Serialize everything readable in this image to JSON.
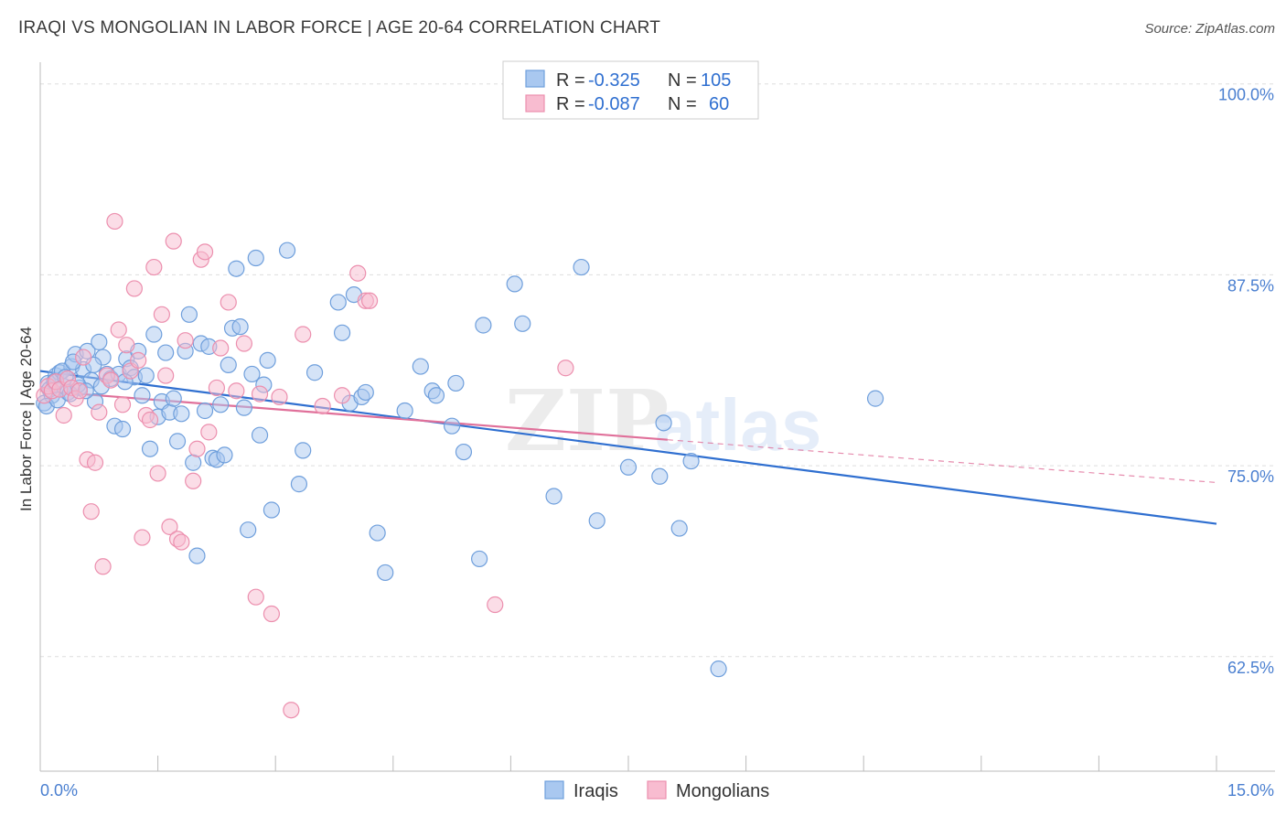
{
  "title": "IRAQI VS MONGOLIAN IN LABOR FORCE | AGE 20-64 CORRELATION CHART",
  "source": "Source: ZipAtlas.com",
  "watermark": {
    "zip": "ZIP",
    "atlas": "atlas"
  },
  "colors": {
    "iraqis_fill": "#a9c8f0",
    "iraqis_stroke": "#6f9fdc",
    "iraqis_line": "#2f6fd0",
    "mongolians_fill": "#f8bcd0",
    "mongolians_stroke": "#ec8fae",
    "mongolians_line": "#e0709a",
    "tick_text": "#4a7fd0",
    "value_text": "#2f6fd0"
  },
  "stats": [
    {
      "r_label": "R =",
      "r_value": "-0.325",
      "n_label": "N =",
      "n_value": "105"
    },
    {
      "r_label": "R =",
      "r_value": "-0.087",
      "n_label": "N =",
      "n_value": "60"
    }
  ],
  "chart_data": {
    "type": "scatter",
    "xlabel": "",
    "ylabel": "In Labor Force | Age 20-64",
    "xlim": [
      0,
      15
    ],
    "ylim": [
      55,
      101
    ],
    "x_tick_labels": [
      "0.0%",
      "15.0%"
    ],
    "y_ticks": [
      62.5,
      75.0,
      87.5,
      100.0
    ],
    "y_tick_labels": [
      "62.5%",
      "75.0%",
      "87.5%",
      "100.0%"
    ],
    "grid": true,
    "legend_position": "bottom-center",
    "series": [
      {
        "name": "Iraqis",
        "trend": {
          "x": [
            0,
            15
          ],
          "y": [
            81.2,
            71.2
          ],
          "dashed_to": null
        },
        "points": [
          [
            0.05,
            79.1
          ],
          [
            0.1,
            80.4
          ],
          [
            0.15,
            79.6
          ],
          [
            0.2,
            80.9
          ],
          [
            0.25,
            81.1
          ],
          [
            0.3,
            80.2
          ],
          [
            0.35,
            79.8
          ],
          [
            0.4,
            81.5
          ],
          [
            0.45,
            82.3
          ],
          [
            0.5,
            80.1
          ],
          [
            0.55,
            81.3
          ],
          [
            0.6,
            82.5
          ],
          [
            0.65,
            80.6
          ],
          [
            0.7,
            79.2
          ],
          [
            0.75,
            83.1
          ],
          [
            0.8,
            82.1
          ],
          [
            0.85,
            81.0
          ],
          [
            0.9,
            80.7
          ],
          [
            0.95,
            77.6
          ],
          [
            1.0,
            81.0
          ],
          [
            1.05,
            77.4
          ],
          [
            1.1,
            82.0
          ],
          [
            1.15,
            81.4
          ],
          [
            1.2,
            80.8
          ],
          [
            1.25,
            82.5
          ],
          [
            1.3,
            79.6
          ],
          [
            1.4,
            76.1
          ],
          [
            1.45,
            83.6
          ],
          [
            1.5,
            78.2
          ],
          [
            1.55,
            79.2
          ],
          [
            1.6,
            82.4
          ],
          [
            1.65,
            78.5
          ],
          [
            1.7,
            79.4
          ],
          [
            1.75,
            76.6
          ],
          [
            1.8,
            78.4
          ],
          [
            1.85,
            82.5
          ],
          [
            1.9,
            84.9
          ],
          [
            1.95,
            75.2
          ],
          [
            2.0,
            69.1
          ],
          [
            2.05,
            83.0
          ],
          [
            2.1,
            78.6
          ],
          [
            2.15,
            82.8
          ],
          [
            2.2,
            75.5
          ],
          [
            2.25,
            75.4
          ],
          [
            2.3,
            79.0
          ],
          [
            2.35,
            75.7
          ],
          [
            2.4,
            81.6
          ],
          [
            2.45,
            84.0
          ],
          [
            2.5,
            87.9
          ],
          [
            2.55,
            84.1
          ],
          [
            2.6,
            78.8
          ],
          [
            2.65,
            70.8
          ],
          [
            2.7,
            81.0
          ],
          [
            2.75,
            88.6
          ],
          [
            2.8,
            77.0
          ],
          [
            2.85,
            80.3
          ],
          [
            2.9,
            81.9
          ],
          [
            2.95,
            72.1
          ],
          [
            3.15,
            89.1
          ],
          [
            3.3,
            73.8
          ],
          [
            3.35,
            76.0
          ],
          [
            3.5,
            81.1
          ],
          [
            3.8,
            85.7
          ],
          [
            3.85,
            83.7
          ],
          [
            3.95,
            79.1
          ],
          [
            4.0,
            86.2
          ],
          [
            4.1,
            79.5
          ],
          [
            4.15,
            79.8
          ],
          [
            4.3,
            70.6
          ],
          [
            4.4,
            68.0
          ],
          [
            4.65,
            78.6
          ],
          [
            4.85,
            81.5
          ],
          [
            5.0,
            79.9
          ],
          [
            5.05,
            79.6
          ],
          [
            5.25,
            77.6
          ],
          [
            5.3,
            80.4
          ],
          [
            5.4,
            75.9
          ],
          [
            5.6,
            68.9
          ],
          [
            5.65,
            84.2
          ],
          [
            6.05,
            86.9
          ],
          [
            6.15,
            84.3
          ],
          [
            6.55,
            73.0
          ],
          [
            6.9,
            88.0
          ],
          [
            7.1,
            71.4
          ],
          [
            7.5,
            74.9
          ],
          [
            7.9,
            74.3
          ],
          [
            7.95,
            77.8
          ],
          [
            8.15,
            70.9
          ],
          [
            8.3,
            75.3
          ],
          [
            8.65,
            61.7
          ],
          [
            10.65,
            79.4
          ],
          [
            0.08,
            78.9
          ],
          [
            0.12,
            80.0
          ],
          [
            0.18,
            80.5
          ],
          [
            0.22,
            79.3
          ],
          [
            0.28,
            81.2
          ],
          [
            0.32,
            80.8
          ],
          [
            0.38,
            79.7
          ],
          [
            0.42,
            81.8
          ],
          [
            0.48,
            80.3
          ],
          [
            0.58,
            79.9
          ],
          [
            0.68,
            81.6
          ],
          [
            0.78,
            80.2
          ],
          [
            1.08,
            80.5
          ],
          [
            1.35,
            80.9
          ]
        ]
      },
      {
        "name": "Mongolians",
        "trend": {
          "x": [
            0,
            8.0
          ],
          "y": [
            79.9,
            76.7
          ],
          "dashed_to": [
            15,
            73.9
          ]
        },
        "points": [
          [
            0.05,
            79.6
          ],
          [
            0.1,
            80.2
          ],
          [
            0.15,
            79.9
          ],
          [
            0.2,
            80.5
          ],
          [
            0.25,
            80.0
          ],
          [
            0.3,
            78.3
          ],
          [
            0.35,
            80.7
          ],
          [
            0.4,
            80.1
          ],
          [
            0.45,
            79.4
          ],
          [
            0.5,
            79.9
          ],
          [
            0.55,
            82.1
          ],
          [
            0.6,
            75.4
          ],
          [
            0.65,
            72.0
          ],
          [
            0.7,
            75.2
          ],
          [
            0.75,
            78.5
          ],
          [
            0.8,
            68.4
          ],
          [
            0.85,
            80.9
          ],
          [
            0.9,
            80.6
          ],
          [
            0.95,
            91.0
          ],
          [
            1.0,
            83.9
          ],
          [
            1.05,
            79.0
          ],
          [
            1.1,
            82.9
          ],
          [
            1.15,
            81.2
          ],
          [
            1.2,
            86.6
          ],
          [
            1.25,
            81.9
          ],
          [
            1.3,
            70.3
          ],
          [
            1.35,
            78.3
          ],
          [
            1.4,
            78.0
          ],
          [
            1.45,
            88.0
          ],
          [
            1.5,
            74.5
          ],
          [
            1.55,
            84.9
          ],
          [
            1.6,
            80.9
          ],
          [
            1.65,
            71.0
          ],
          [
            1.7,
            89.7
          ],
          [
            1.75,
            70.2
          ],
          [
            1.8,
            70.0
          ],
          [
            1.85,
            83.2
          ],
          [
            1.95,
            74.0
          ],
          [
            2.0,
            76.1
          ],
          [
            2.05,
            88.5
          ],
          [
            2.1,
            89.0
          ],
          [
            2.15,
            77.2
          ],
          [
            2.25,
            80.1
          ],
          [
            2.3,
            82.7
          ],
          [
            2.4,
            85.7
          ],
          [
            2.5,
            79.9
          ],
          [
            2.6,
            83.0
          ],
          [
            2.75,
            66.4
          ],
          [
            2.8,
            79.7
          ],
          [
            2.95,
            65.3
          ],
          [
            3.05,
            79.5
          ],
          [
            3.2,
            59.0
          ],
          [
            3.35,
            83.6
          ],
          [
            3.6,
            78.9
          ],
          [
            3.85,
            79.6
          ],
          [
            4.05,
            87.6
          ],
          [
            4.15,
            85.8
          ],
          [
            4.2,
            85.8
          ],
          [
            5.8,
            65.9
          ],
          [
            6.7,
            81.4
          ]
        ]
      }
    ]
  },
  "legend": [
    {
      "label": "Iraqis"
    },
    {
      "label": "Mongolians"
    }
  ]
}
